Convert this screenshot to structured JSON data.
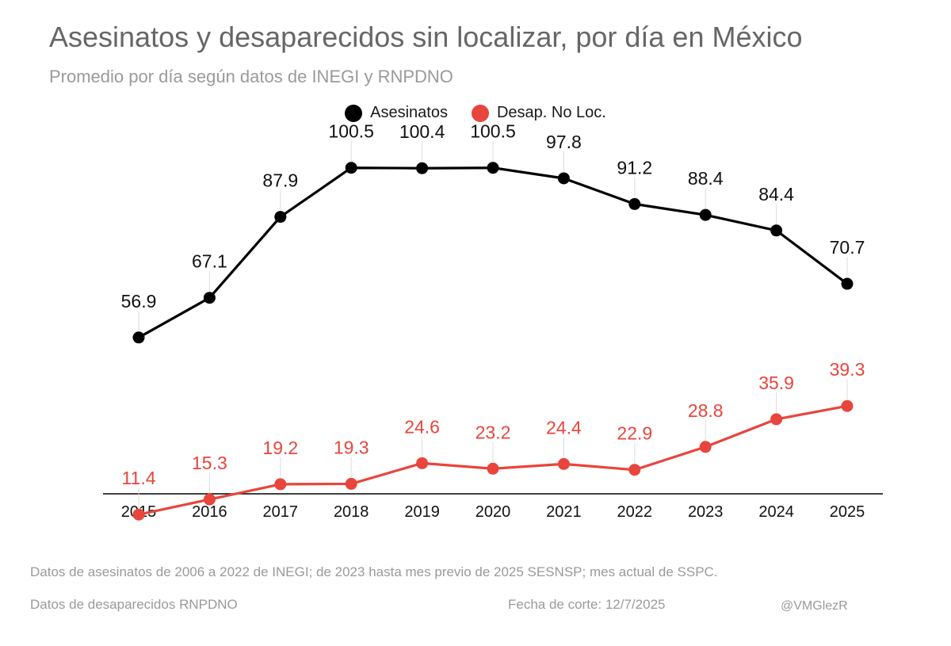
{
  "chart_data": {
    "type": "line",
    "title": "Asesinatos y desaparecidos sin localizar, por día en México",
    "subtitle": "Promedio por día según datos de INEGI y RNPDNO",
    "categories": [
      "2015",
      "2016",
      "2017",
      "2018",
      "2019",
      "2020",
      "2021",
      "2022",
      "2023",
      "2024",
      "2025"
    ],
    "series": [
      {
        "name": "Asesinatos",
        "color": "#000000",
        "values": [
          56.9,
          67.1,
          87.9,
          100.5,
          100.4,
          100.5,
          97.8,
          91.2,
          88.4,
          84.4,
          70.7
        ],
        "labels": [
          "56.9",
          "67.1",
          "87.9",
          "100.5",
          "100.4",
          "100.5",
          "97.8",
          "91.2",
          "88.4",
          "84.4",
          "70.7"
        ]
      },
      {
        "name": "Desap. No Loc.",
        "color": "#e8453c",
        "values": [
          11.4,
          15.3,
          19.2,
          19.3,
          24.6,
          23.2,
          24.4,
          22.9,
          28.8,
          35.9,
          39.3
        ],
        "labels": [
          "11.4",
          "15.3",
          "19.2",
          "19.3",
          "24.6",
          "23.2",
          "24.4",
          "22.9",
          "28.8",
          "35.9",
          "39.3"
        ]
      }
    ],
    "xlabel": "",
    "ylabel": "",
    "ylim": [
      0,
      110
    ],
    "grid": false,
    "legend": "top-center"
  },
  "footnotes": {
    "sources": "Datos de asesinatos de 2006 a 2022 de INEGI; de 2023 hasta mes previo de 2025 SESNSP; mes actual de SSPC.",
    "missing_source": "Datos de desaparecidos RNPDNO",
    "cutoff_date": "Fecha de corte:  12/7/2025",
    "handle": "@VMGlezR"
  }
}
